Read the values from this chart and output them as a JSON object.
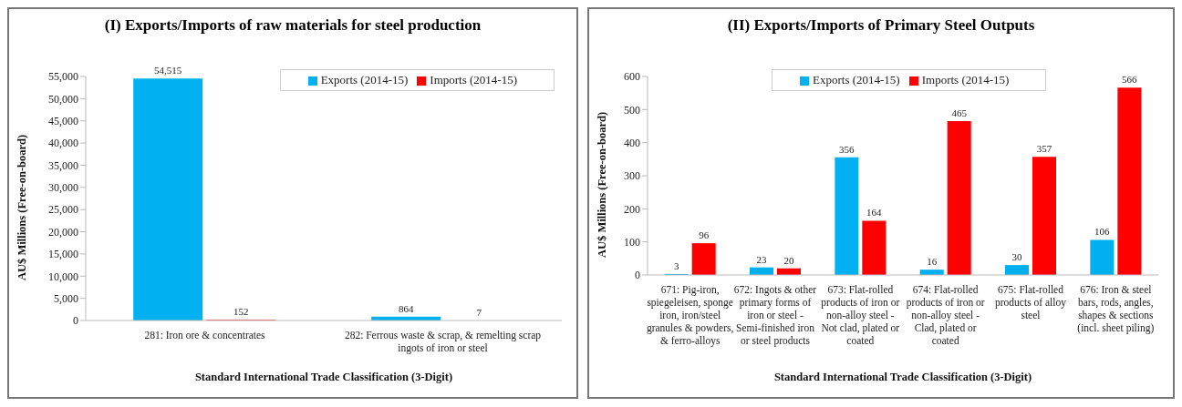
{
  "chart_data": [
    {
      "type": "bar",
      "title": "(I) Exports/Imports of raw materials for steel production",
      "xlabel": "Standard International Trade Classification (3-Digit)",
      "ylabel": "AU$ Millions (Free-on-board)",
      "categories": [
        "281: Iron ore & concentrates",
        "282: Ferrous waste & scrap, & remelting scrap ingots of iron or steel"
      ],
      "series": [
        {
          "name": "Exports (2014-15)",
          "color": "#00b0f0",
          "values": [
            54515,
            864
          ],
          "value_labels": [
            "54,515",
            "864"
          ]
        },
        {
          "name": "Imports (2014-15)",
          "color": "#ff0000",
          "values": [
            152,
            7
          ],
          "value_labels": [
            "152",
            "7"
          ]
        }
      ],
      "ylim": [
        0,
        55000
      ],
      "yticks": [
        {
          "value": 0,
          "label": "0"
        },
        {
          "value": 5000,
          "label": "5,000"
        },
        {
          "value": 10000,
          "label": "10,000"
        },
        {
          "value": 15000,
          "label": "15,000"
        },
        {
          "value": 20000,
          "label": "20,000"
        },
        {
          "value": 25000,
          "label": "25,000"
        },
        {
          "value": 30000,
          "label": "30,000"
        },
        {
          "value": 35000,
          "label": "35,000"
        },
        {
          "value": 40000,
          "label": "40,000"
        },
        {
          "value": 45000,
          "label": "45,000"
        },
        {
          "value": 50000,
          "label": "50,000"
        },
        {
          "value": 55000,
          "label": "55,000"
        }
      ],
      "legend": "top right",
      "grid": false
    },
    {
      "type": "bar",
      "title": "(II) Exports/Imports of Primary Steel Outputs",
      "xlabel": "Standard International Trade Classification (3-Digit)",
      "ylabel": "AU$ Millions (Free-on-board)",
      "categories": [
        "671: Pig-iron, spiegeleisen, sponge iron, iron/steel granules & powders, & ferro-alloys",
        "672: Ingots & other primary forms of iron or steel - Semi-finished iron or steel products",
        "673: Flat-rolled products of iron or non-alloy steel - Not clad, plated or coated",
        "674: Flat-rolled products of iron or non-alloy steel - Clad, plated or coated",
        "675: Flat-rolled products of alloy steel",
        "676: Iron & steel bars, rods, angles, shapes & sections (incl. sheet piling)"
      ],
      "series": [
        {
          "name": "Exports (2014-15)",
          "color": "#00b0f0",
          "values": [
            3,
            23,
            356,
            16,
            30,
            106
          ]
        },
        {
          "name": "Imports (2014-15)",
          "color": "#ff0000",
          "values": [
            96,
            20,
            164,
            465,
            357,
            566
          ]
        }
      ],
      "ylim": [
        0,
        600
      ],
      "yticks": [
        0,
        100,
        200,
        300,
        400,
        500,
        600
      ],
      "data_labels": true,
      "legend": "top",
      "grid": false
    }
  ]
}
